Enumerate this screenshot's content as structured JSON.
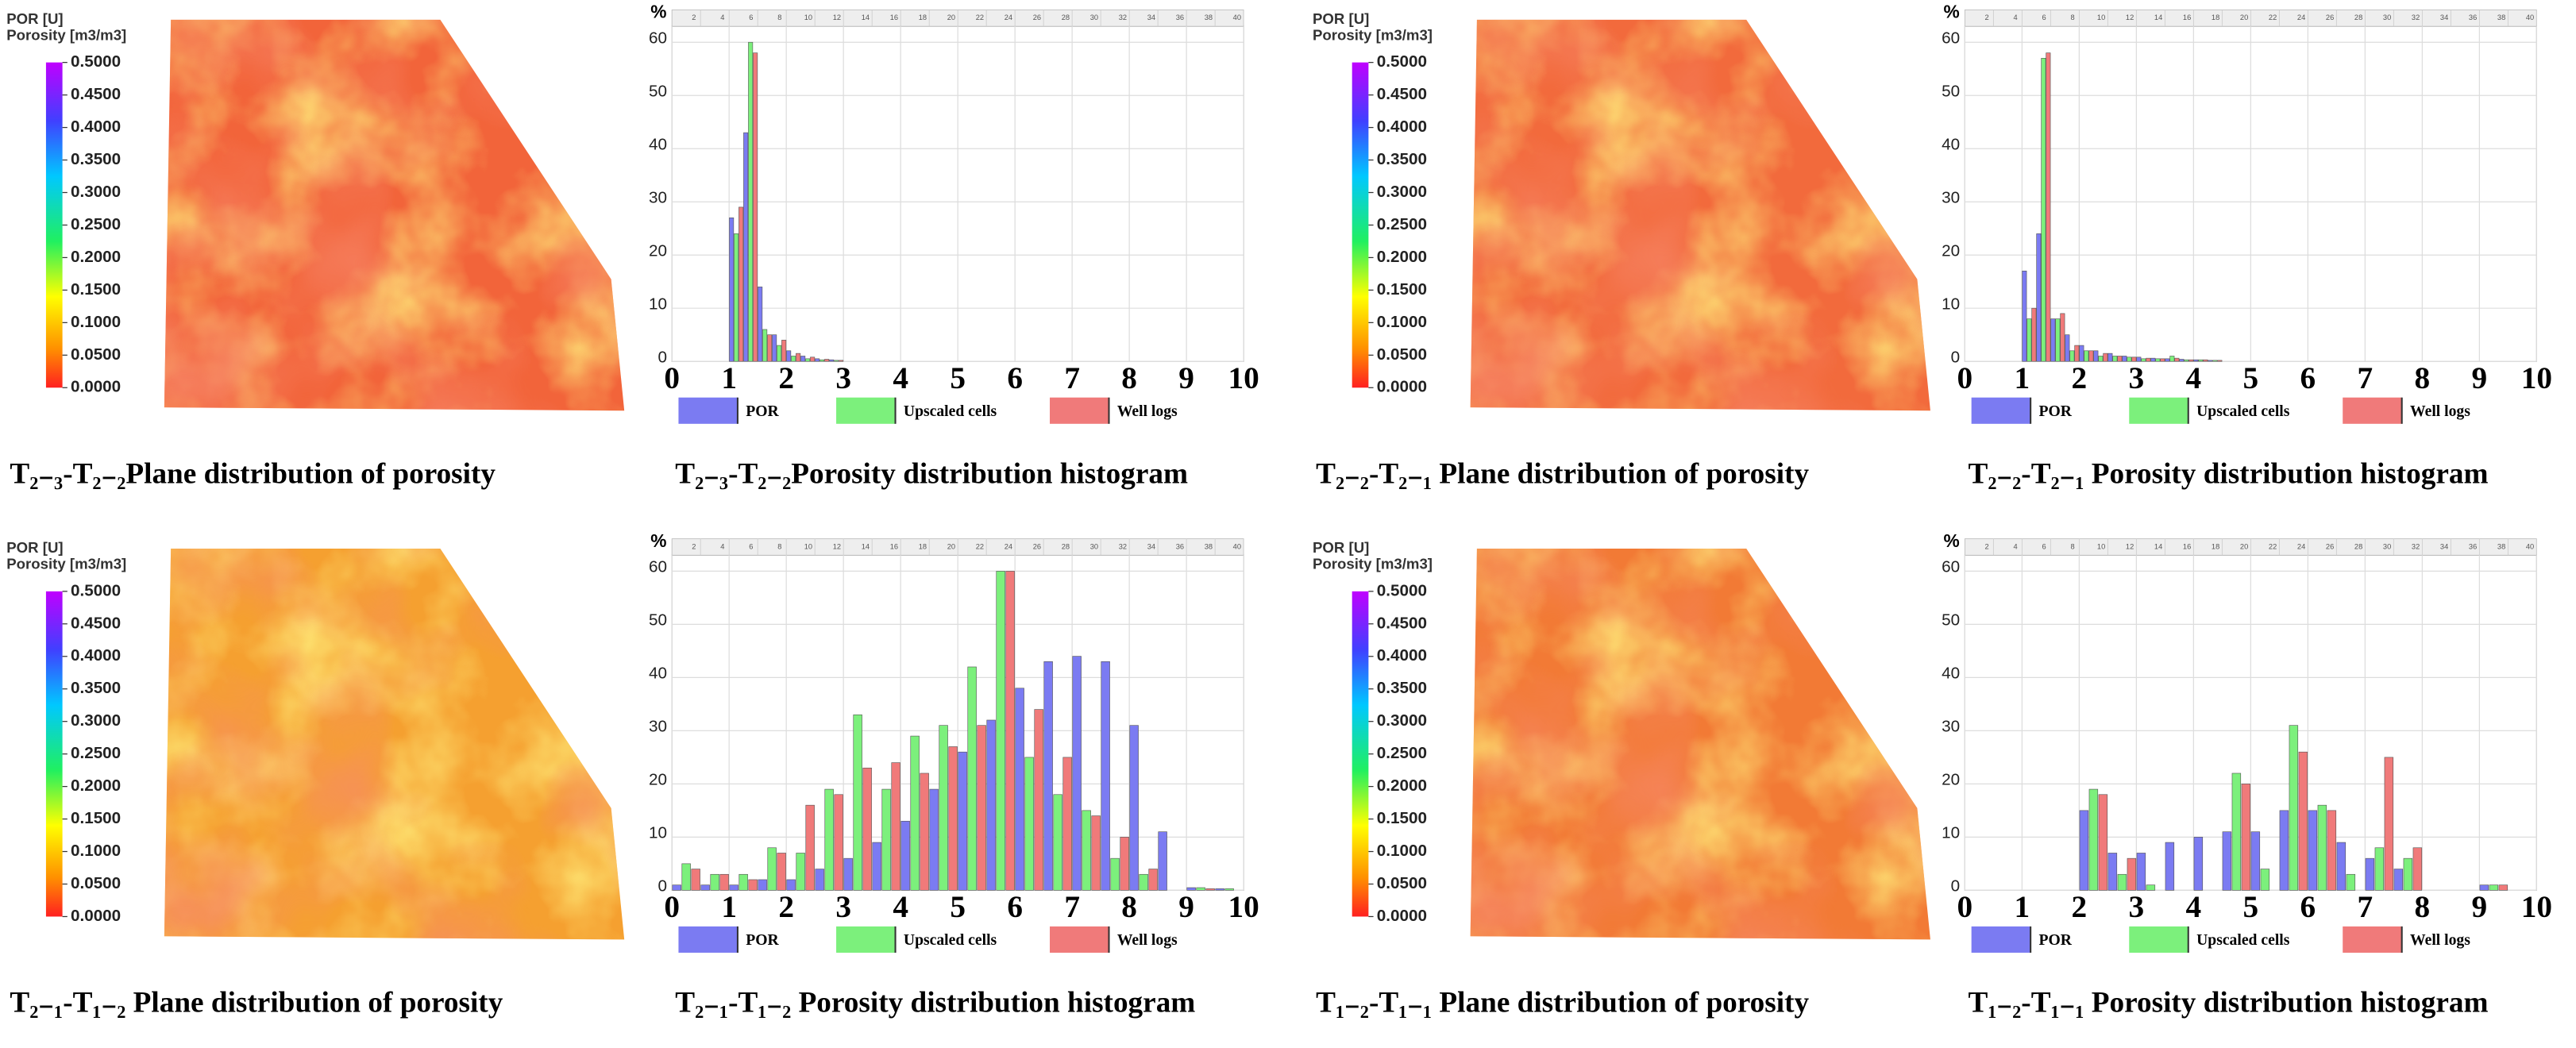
{
  "chart_data": [
    {
      "type": "map",
      "title": "POR [U]",
      "subtitle": "Porosity [m3/m3]",
      "color": "#f2643a",
      "clim": [
        0,
        0.5
      ],
      "colorbar_ticks": [
        {
          "value": 0,
          "label": "0.0000"
        },
        {
          "value": 0.05,
          "label": "0.0500"
        },
        {
          "value": 0.1,
          "label": "0.1000"
        },
        {
          "value": 0.15,
          "label": "0.1500"
        },
        {
          "value": 0.2,
          "label": "0.2000"
        },
        {
          "value": 0.25,
          "label": "0.2500"
        },
        {
          "value": 0.3,
          "label": "0.3000"
        },
        {
          "value": 0.35,
          "label": "0.3500"
        },
        {
          "value": 0.4,
          "label": "0.4000"
        },
        {
          "value": 0.45,
          "label": "0.4500"
        },
        {
          "value": 0.5,
          "label": "0.5000"
        }
      ],
      "caption": "T₂₋₃-T₂₋₂Plane distribution of porosity"
    },
    {
      "type": "histogram",
      "ylabel": "%",
      "caption": "T₂₋₃-T₂₋₂Porosity distribution histogram",
      "bins": [
        1,
        1.25,
        1.5,
        1.75,
        2,
        2.25,
        2.5,
        2.75,
        3
      ],
      "series": [
        {
          "name": "POR",
          "color": "#7b7bf2",
          "values": [
            27,
            43,
            14,
            5,
            2,
            1,
            0.5,
            0.3
          ]
        },
        {
          "name": "Upscaled cells",
          "color": "#7cf07c",
          "values": [
            24,
            60,
            6,
            3,
            1,
            0.5,
            0.3,
            0.2
          ]
        },
        {
          "name": "Well logs",
          "color": "#f07a7a",
          "values": [
            29,
            58,
            5,
            4,
            1.5,
            0.8,
            0.4,
            0.2
          ]
        }
      ],
      "xlim": [
        0,
        10
      ],
      "xticks": [
        0,
        1,
        2,
        3,
        4,
        5,
        6,
        7,
        8,
        9,
        10
      ],
      "ylim": [
        0,
        63
      ],
      "yticks": [
        0,
        10,
        20,
        30,
        40,
        50,
        60
      ],
      "x2lim": [
        0,
        40
      ],
      "x2ticks": [
        2,
        4,
        6,
        8,
        10,
        12,
        14,
        16,
        18,
        20,
        22,
        24,
        26,
        28,
        30,
        32,
        34,
        36,
        38,
        40
      ],
      "grid": true
    },
    {
      "type": "map",
      "title": "POR [U]",
      "subtitle": "Porosity [m3/m3]",
      "color": "#f26a3c",
      "clim": [
        0,
        0.5
      ],
      "colorbar_ticks": [
        {
          "value": 0,
          "label": "0.0000"
        },
        {
          "value": 0.05,
          "label": "0.0500"
        },
        {
          "value": 0.1,
          "label": "0.1000"
        },
        {
          "value": 0.15,
          "label": "0.1500"
        },
        {
          "value": 0.2,
          "label": "0.2000"
        },
        {
          "value": 0.25,
          "label": "0.2500"
        },
        {
          "value": 0.3,
          "label": "0.3000"
        },
        {
          "value": 0.35,
          "label": "0.3500"
        },
        {
          "value": 0.4,
          "label": "0.4000"
        },
        {
          "value": 0.45,
          "label": "0.4500"
        },
        {
          "value": 0.5,
          "label": "0.5000"
        }
      ],
      "caption": "T₂₋₂-T₂₋₁ Plane distribution of porosity"
    },
    {
      "type": "histogram",
      "ylabel": "%",
      "caption": "T₂₋₂-T₂₋₁ Porosity distribution histogram",
      "bins": [
        1,
        1.25,
        1.5,
        1.75,
        2,
        2.25,
        2.5,
        2.75,
        3,
        3.25,
        3.5,
        3.75,
        4,
        4.25,
        4.5
      ],
      "series": [
        {
          "name": "POR",
          "color": "#7b7bf2",
          "values": [
            17,
            24,
            8,
            5,
            3,
            2,
            1.5,
            1,
            0.8,
            0.6,
            0.5,
            0.4,
            0.3,
            0.2
          ]
        },
        {
          "name": "Upscaled cells",
          "color": "#7cf07c",
          "values": [
            8,
            57,
            8,
            2,
            2,
            1,
            1,
            0.8,
            0.5,
            0.5,
            1,
            0.3,
            0.3,
            0.2
          ]
        },
        {
          "name": "Well logs",
          "color": "#f07a7a",
          "values": [
            10,
            58,
            9,
            3,
            2,
            1.5,
            1,
            0.8,
            0.6,
            0.5,
            0.6,
            0.3,
            0.3,
            0.2
          ]
        }
      ],
      "xlim": [
        0,
        10
      ],
      "xticks": [
        0,
        1,
        2,
        3,
        4,
        5,
        6,
        7,
        8,
        9,
        10
      ],
      "ylim": [
        0,
        63
      ],
      "yticks": [
        0,
        10,
        20,
        30,
        40,
        50,
        60
      ],
      "x2lim": [
        0,
        40
      ],
      "x2ticks": [
        2,
        4,
        6,
        8,
        10,
        12,
        14,
        16,
        18,
        20,
        22,
        24,
        26,
        28,
        30,
        32,
        34,
        36,
        38,
        40
      ],
      "grid": true
    },
    {
      "type": "map",
      "title": "POR [U]",
      "subtitle": "Porosity [m3/m3]",
      "color": "#f5a030",
      "clim": [
        0,
        0.5
      ],
      "colorbar_ticks": [
        {
          "value": 0,
          "label": "0.0000"
        },
        {
          "value": 0.05,
          "label": "0.0500"
        },
        {
          "value": 0.1,
          "label": "0.1000"
        },
        {
          "value": 0.15,
          "label": "0.1500"
        },
        {
          "value": 0.2,
          "label": "0.2000"
        },
        {
          "value": 0.25,
          "label": "0.2500"
        },
        {
          "value": 0.3,
          "label": "0.3000"
        },
        {
          "value": 0.35,
          "label": "0.3500"
        },
        {
          "value": 0.4,
          "label": "0.4000"
        },
        {
          "value": 0.45,
          "label": "0.4500"
        },
        {
          "value": 0.5,
          "label": "0.5000"
        }
      ],
      "caption": "T₂₋₁-T₁₋₂ Plane distribution of porosity"
    },
    {
      "type": "histogram",
      "ylabel": "%",
      "caption": "T₂₋₁-T₁₋₂ Porosity distribution histogram",
      "bins": [
        0,
        0.5,
        1,
        1.5,
        2,
        2.5,
        3,
        3.5,
        4,
        4.5,
        5,
        5.5,
        6,
        6.5,
        7,
        7.5,
        8,
        8.5,
        9,
        9.5,
        10
      ],
      "series": [
        {
          "name": "POR",
          "color": "#7b7bf2",
          "values": [
            1,
            1,
            1,
            2,
            2,
            4,
            6,
            9,
            13,
            19,
            26,
            32,
            38,
            43,
            44,
            43,
            31,
            11,
            0.5,
            0.3
          ]
        },
        {
          "name": "Upscaled cells",
          "color": "#7cf07c",
          "values": [
            5,
            3,
            3,
            8,
            7,
            19,
            33,
            19,
            29,
            31,
            42,
            60,
            25,
            18,
            15,
            6,
            3,
            0,
            0.5,
            0.3
          ]
        },
        {
          "name": "Well logs",
          "color": "#f07a7a",
          "values": [
            4,
            3,
            2,
            7,
            16,
            18,
            23,
            24,
            22,
            27,
            31,
            60,
            34,
            25,
            14,
            10,
            4,
            0,
            0.3,
            0
          ]
        }
      ],
      "xlim": [
        0,
        10
      ],
      "xticks": [
        0,
        1,
        2,
        3,
        4,
        5,
        6,
        7,
        8,
        9,
        10
      ],
      "ylim": [
        0,
        63
      ],
      "yticks": [
        0,
        10,
        20,
        30,
        40,
        50,
        60
      ],
      "x2lim": [
        0,
        40
      ],
      "x2ticks": [
        2,
        4,
        6,
        8,
        10,
        12,
        14,
        16,
        18,
        20,
        22,
        24,
        26,
        28,
        30,
        32,
        34,
        36,
        38,
        40
      ],
      "grid": true
    },
    {
      "type": "map",
      "title": "POR [U]",
      "subtitle": "Porosity [m3/m3]",
      "color": "#f27a35",
      "clim": [
        0,
        0.5
      ],
      "colorbar_ticks": [
        {
          "value": 0,
          "label": "0.0000"
        },
        {
          "value": 0.05,
          "label": "0.0500"
        },
        {
          "value": 0.1,
          "label": "0.1000"
        },
        {
          "value": 0.15,
          "label": "0.1500"
        },
        {
          "value": 0.2,
          "label": "0.2000"
        },
        {
          "value": 0.25,
          "label": "0.2500"
        },
        {
          "value": 0.3,
          "label": "0.3000"
        },
        {
          "value": 0.35,
          "label": "0.3500"
        },
        {
          "value": 0.4,
          "label": "0.4000"
        },
        {
          "value": 0.45,
          "label": "0.4500"
        },
        {
          "value": 0.5,
          "label": "0.5000"
        }
      ],
      "caption": "T₁₋₂-T₁₋₁ Plane distribution of porosity"
    },
    {
      "type": "histogram",
      "ylabel": "%",
      "caption": "T₁₋₂-T₁₋₁ Porosity distribution histogram",
      "bins": [
        2,
        2.5,
        3,
        3.5,
        4,
        4.5,
        5,
        5.5,
        6,
        6.5,
        7,
        7.5,
        8,
        8.5,
        9,
        9.5
      ],
      "series": [
        {
          "name": "POR",
          "color": "#7b7bf2",
          "values": [
            15,
            7,
            7,
            9,
            10,
            11,
            11,
            15,
            15,
            9,
            6,
            4,
            0,
            0,
            1
          ]
        },
        {
          "name": "Upscaled cells",
          "color": "#7cf07c",
          "values": [
            19,
            3,
            1,
            0,
            0,
            22,
            4,
            31,
            16,
            3,
            8,
            6,
            0,
            0,
            1
          ]
        },
        {
          "name": "Well logs",
          "color": "#f07a7a",
          "values": [
            18,
            6,
            0,
            0,
            0,
            20,
            0,
            26,
            15,
            0,
            25,
            8,
            0,
            0,
            1
          ]
        }
      ],
      "xlim": [
        0,
        10
      ],
      "xticks": [
        0,
        1,
        2,
        3,
        4,
        5,
        6,
        7,
        8,
        9,
        10
      ],
      "ylim": [
        0,
        63
      ],
      "yticks": [
        0,
        10,
        20,
        30,
        40,
        50,
        60
      ],
      "x2lim": [
        0,
        40
      ],
      "x2ticks": [
        2,
        4,
        6,
        8,
        10,
        12,
        14,
        16,
        18,
        20,
        22,
        24,
        26,
        28,
        30,
        32,
        34,
        36,
        38,
        40
      ],
      "grid": true
    }
  ]
}
